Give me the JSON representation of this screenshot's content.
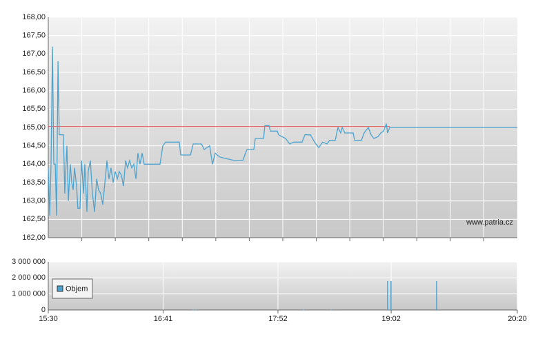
{
  "chart_data": [
    {
      "type": "line",
      "color": "#4aa3d0",
      "watermark": "www.patria.cz",
      "reference_line": 165.02,
      "reference_color": "#e03030",
      "xlim": [
        930,
        1220
      ],
      "ylim": [
        162,
        168
      ],
      "yticks": [
        {
          "value": 162,
          "label": "162,00"
        },
        {
          "value": 162.5,
          "label": "162,50"
        },
        {
          "value": 163,
          "label": "163,00"
        },
        {
          "value": 163.5,
          "label": "163,50"
        },
        {
          "value": 164,
          "label": "164,00"
        },
        {
          "value": 164.5,
          "label": "164,50"
        },
        {
          "value": 165,
          "label": "165,00"
        },
        {
          "value": 165.5,
          "label": "165,50"
        },
        {
          "value": 166,
          "label": "166,00"
        },
        {
          "value": 166.5,
          "label": "166,50"
        },
        {
          "value": 167,
          "label": "167,00"
        },
        {
          "value": 167.5,
          "label": "167,50"
        },
        {
          "value": 168,
          "label": "168,00"
        }
      ],
      "x": [
        930,
        930.9,
        931.7,
        932.6,
        933.4,
        934.3,
        935.1,
        936,
        936.8,
        939.4,
        940.2,
        941.5,
        942.4,
        943.6,
        944.5,
        945.4,
        946.2,
        947.5,
        948.3,
        949.6,
        950.5,
        951.8,
        952.6,
        953.9,
        954.7,
        956,
        957.3,
        958.6,
        959.9,
        961.1,
        962.4,
        963.7,
        965,
        966.3,
        967.5,
        968.8,
        970.1,
        971.4,
        972.7,
        973.9,
        975.2,
        976.5,
        977.8,
        979,
        980.3,
        981.6,
        982.9,
        984.2,
        985.4,
        986.7,
        988,
        989.3,
        999.1,
        1000.8,
        1002.5,
        1005.1,
        1011,
        1011.9,
        1017.9,
        1019.6,
        1024.7,
        1026.4,
        1029.8,
        1031.5,
        1033.2,
        1035.8,
        1040,
        1045.2,
        1050.3,
        1052.8,
        1057.1,
        1058,
        1063.1,
        1063.9,
        1066.5,
        1067.3,
        1071.6,
        1072.4,
        1076.7,
        1079.3,
        1081.8,
        1086.9,
        1088.7,
        1092.1,
        1094.6,
        1097.2,
        1099.7,
        1102.3,
        1104,
        1107.4,
        1109.1,
        1110.8,
        1111.7,
        1113.4,
        1118.5,
        1119.4,
        1123.6,
        1125.3,
        1127.9,
        1129.6,
        1131.3,
        1133.9,
        1135.6,
        1137.3,
        1139,
        1139.8,
        1141.1,
        1220
      ],
      "values": [
        163.9,
        162.6,
        164.0,
        167.2,
        164.0,
        164.0,
        162.6,
        166.8,
        164.8,
        164.8,
        163.2,
        164.5,
        163.0,
        164.0,
        163.5,
        163.3,
        163.9,
        163.4,
        162.8,
        162.8,
        164.1,
        163.2,
        164.0,
        162.7,
        163.8,
        164.1,
        163.2,
        162.7,
        163.6,
        163.3,
        163.2,
        162.9,
        163.5,
        164.1,
        163.6,
        163.9,
        163.5,
        163.8,
        163.6,
        163.8,
        163.7,
        163.4,
        164.1,
        163.9,
        164.1,
        163.9,
        164.0,
        163.6,
        164.3,
        164.0,
        164.3,
        164.0,
        164.0,
        164.5,
        164.6,
        164.6,
        164.6,
        164.25,
        164.25,
        164.55,
        164.55,
        164.4,
        164.5,
        164.0,
        164.3,
        164.2,
        164.15,
        164.1,
        164.1,
        164.4,
        164.4,
        164.7,
        164.7,
        165.05,
        165.05,
        164.9,
        164.9,
        164.8,
        164.7,
        164.55,
        164.6,
        164.6,
        164.8,
        164.8,
        164.6,
        164.45,
        164.6,
        164.55,
        164.65,
        164.65,
        165.0,
        164.85,
        165.0,
        164.85,
        164.85,
        164.65,
        164.65,
        164.85,
        165.0,
        164.8,
        164.7,
        164.75,
        164.85,
        164.9,
        165.1,
        164.85,
        165.0,
        165.0
      ]
    },
    {
      "type": "bar",
      "legend": "upper left",
      "xlim": [
        930,
        1220
      ],
      "ylim": [
        0,
        3000000
      ],
      "xticks": [
        {
          "value": 930,
          "label": "15:30"
        },
        {
          "value": 1001,
          "label": "16:41"
        },
        {
          "value": 1072,
          "label": "17:52"
        },
        {
          "value": 1142,
          "label": "19:02"
        },
        {
          "value": 1220,
          "label": "20:20"
        }
      ],
      "yticks": [
        0,
        {
          "value": 1000000,
          "label": "1 000 000"
        },
        {
          "value": 2000000,
          "label": "2 000 000"
        },
        {
          "value": 3000000,
          "label": "3 000 000"
        }
      ],
      "series": [
        {
          "name": "Objem",
          "color": "#4aa3d0",
          "x": [
            1019.6,
            1021.3,
            1087.8,
            1104.9,
            1139.8,
            1141.9,
            1170.1
          ],
          "values": [
            20000,
            20000,
            20000,
            20000,
            1800000,
            1800000,
            1800000
          ]
        }
      ]
    }
  ]
}
